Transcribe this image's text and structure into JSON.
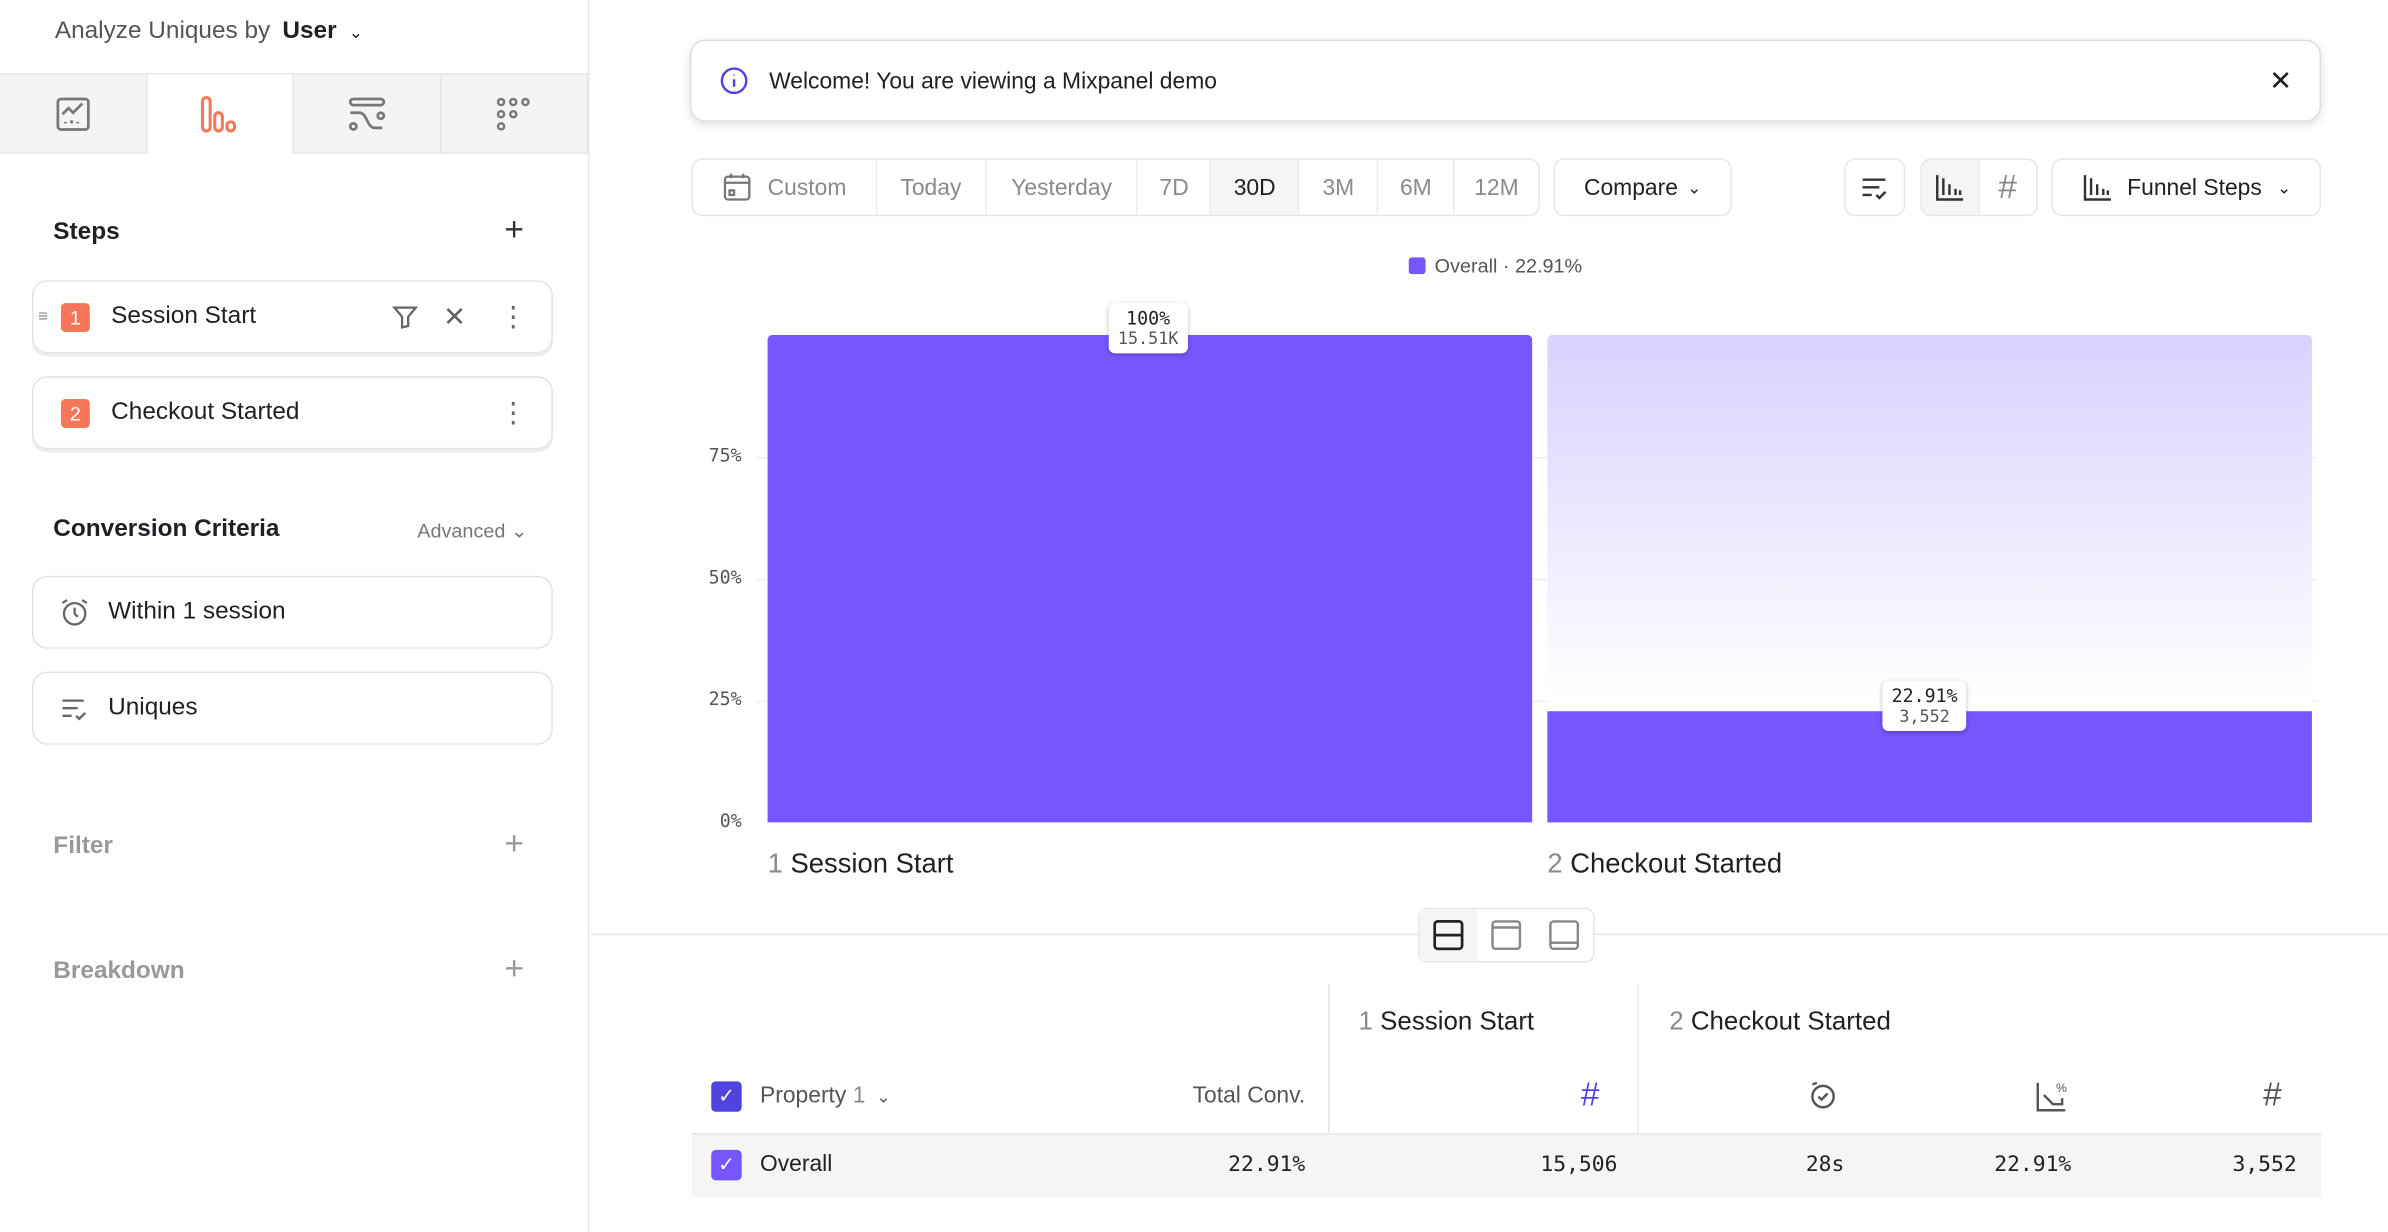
{
  "sidebar": {
    "analyze_label": "Analyze Uniques by",
    "analyze_value": "User",
    "tabs": [
      {
        "icon": "insights-icon"
      },
      {
        "icon": "funnels-icon",
        "active": true
      },
      {
        "icon": "flows-icon"
      },
      {
        "icon": "retention-icon"
      }
    ],
    "steps_title": "Steps",
    "steps": [
      {
        "number": "1",
        "name": "Session Start"
      },
      {
        "number": "2",
        "name": "Checkout Started"
      }
    ],
    "conversion_title": "Conversion Criteria",
    "advanced_label": "Advanced",
    "criteria": [
      {
        "icon": "alarm-clock-icon",
        "label": "Within 1 session"
      },
      {
        "icon": "counting-icon",
        "label": "Uniques"
      }
    ],
    "filter_label": "Filter",
    "breakdown_label": "Breakdown"
  },
  "banner": {
    "text": "Welcome! You are viewing a Mixpanel demo"
  },
  "toolbar": {
    "date_ranges": [
      "Custom",
      "Today",
      "Yesterday",
      "7D",
      "30D",
      "3M",
      "6M",
      "12M"
    ],
    "active_range": "30D",
    "compare_label": "Compare",
    "funnel_view_label": "Funnel Steps"
  },
  "colors": {
    "accent": "#7856ff",
    "badge": "#f6765a",
    "checkbox": "#4f44e0"
  },
  "chart_data": {
    "type": "bar",
    "legend": "Overall · 22.91%",
    "categories": [
      "Session Start",
      "Checkout Started"
    ],
    "category_numbers": [
      "1",
      "2"
    ],
    "values": [
      100,
      22.91
    ],
    "counts": [
      "15.51K",
      "3,552"
    ],
    "value_labels": [
      "100%",
      "22.91%"
    ],
    "yticks": [
      "0%",
      "25%",
      "50%",
      "75%"
    ],
    "ylim": [
      0,
      100
    ],
    "grid": true,
    "legend_position": "top"
  },
  "table": {
    "steps": [
      {
        "number": "1",
        "name": "Session Start"
      },
      {
        "number": "2",
        "name": "Checkout Started"
      }
    ],
    "property_label": "Property",
    "property_count": "1",
    "total_conv_label": "Total Conv.",
    "rows": [
      {
        "label": "Overall",
        "total_conv": "22.91%",
        "step1_count": "15,506",
        "time": "28s",
        "conv": "22.91%",
        "step2_count": "3,552"
      }
    ]
  }
}
